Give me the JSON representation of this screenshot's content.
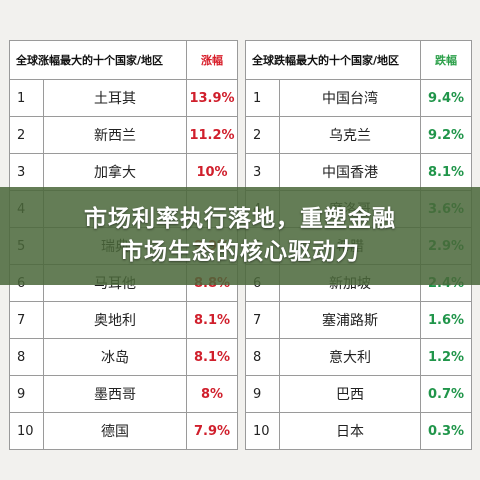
{
  "left_table": {
    "title": "全球涨幅最大的十个国家/地区",
    "value_header": "涨幅",
    "rows": [
      {
        "rank": "1",
        "country": "土耳其",
        "value": "13.9%"
      },
      {
        "rank": "2",
        "country": "新西兰",
        "value": "11.2%"
      },
      {
        "rank": "3",
        "country": "加拿大",
        "value": "10%"
      },
      {
        "rank": "4",
        "country": "",
        "value": ""
      },
      {
        "rank": "5",
        "country": "瑞典",
        "value": "9.9%"
      },
      {
        "rank": "6",
        "country": "马耳他",
        "value": "8.8%"
      },
      {
        "rank": "7",
        "country": "奥地利",
        "value": "8.1%"
      },
      {
        "rank": "8",
        "country": "冰岛",
        "value": "8.1%"
      },
      {
        "rank": "9",
        "country": "墨西哥",
        "value": "8%"
      },
      {
        "rank": "10",
        "country": "德国",
        "value": "7.9%"
      }
    ]
  },
  "right_table": {
    "title": "全球跌幅最大的十个国家/地区",
    "value_header": "跌幅",
    "rows": [
      {
        "rank": "1",
        "country": "中国台湾",
        "value": "9.4%"
      },
      {
        "rank": "2",
        "country": "乌克兰",
        "value": "9.2%"
      },
      {
        "rank": "3",
        "country": "中国香港",
        "value": "8.1%"
      },
      {
        "rank": "4",
        "country": "摩洛哥",
        "value": "3.6%"
      },
      {
        "rank": "5",
        "country": "希腊",
        "value": "2.9%"
      },
      {
        "rank": "6",
        "country": "新加坡",
        "value": "2.4%"
      },
      {
        "rank": "7",
        "country": "塞浦路斯",
        "value": "1.6%"
      },
      {
        "rank": "8",
        "country": "意大利",
        "value": "1.2%"
      },
      {
        "rank": "9",
        "country": "巴西",
        "value": "0.7%"
      },
      {
        "rank": "10",
        "country": "日本",
        "value": "0.3%"
      }
    ]
  },
  "banner": {
    "line1": "市场利率执行落地，重塑金融",
    "line2": "市场生态的核心驱动力"
  },
  "colors": {
    "rise": "#d81e2a",
    "fall": "#2ca04a",
    "banner_bg": "#4a683a"
  }
}
